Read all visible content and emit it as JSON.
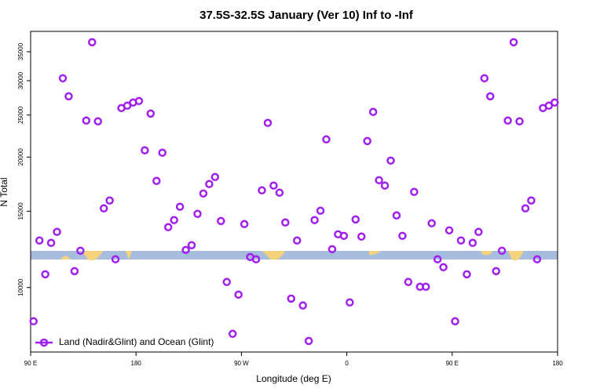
{
  "chart_data": {
    "type": "scatter",
    "title": "37.5S-32.5S January (Ver 10)   Inf to -Inf",
    "x_label": "Longitude (deg E)",
    "y_label": "N Total",
    "log_y": true,
    "legend": "bottom-left",
    "x": [
      92.5,
      97.5,
      102.5,
      107.5,
      112.5,
      117.5,
      122.5,
      127.5,
      132.5,
      137.5,
      142.5,
      147.5,
      152.5,
      157.5,
      162.5,
      167.5,
      172.5,
      177.5,
      182.5,
      187.5,
      192.5,
      197.5,
      202.5,
      207.5,
      212.5,
      217.5,
      222.5,
      227.5,
      232.5,
      237.5,
      242.5,
      247.5,
      252.5,
      257.5,
      262.5,
      267.5,
      272.5,
      277.5,
      282.5,
      287.5,
      292.5,
      297.5,
      302.5,
      307.5,
      312.5,
      317.5,
      322.5,
      327.5,
      332.5,
      337.5,
      342.5,
      347.5,
      352.5,
      357.5,
      362.5,
      367.5,
      372.5,
      377.5,
      382.5,
      387.5,
      392.5,
      397.5,
      402.5,
      407.5,
      412.5,
      417.5,
      422.5,
      427.5,
      432.5,
      437.5,
      442.5,
      447.5,
      452.5,
      457.5,
      462.5,
      467.5,
      472.5,
      477.5,
      482.5,
      487.5,
      492.5,
      497.5,
      502.5,
      507.5,
      512.5,
      517.5,
      522.5,
      527.5,
      532.5,
      537.5
    ],
    "series": [
      {
        "name": "Land (Nadir&Glint) and Ocean (Glint)",
        "color": "#a020f0",
        "values": [
          8360,
          12840,
          10730,
          12680,
          13440,
          30400,
          27620,
          10910,
          12160,
          24280,
          36810,
          24180,
          15230,
          15880,
          11620,
          25950,
          26280,
          26720,
          26940,
          20730,
          25200,
          17620,
          20470,
          13780,
          14310,
          15360,
          12210,
          12520,
          14790,
          16480,
          17330,
          17990,
          14240,
          10300,
          7820,
          9630,
          14010,
          11760,
          11620,
          16760,
          23980,
          17190,
          16550,
          14130,
          9430,
          12840,
          9090,
          7530,
          14310,
          15040,
          21970,
          12260,
          13270,
          13160,
          9240,
          14360,
          13110,
          21780,
          25420,
          17690,
          17190,
          19630,
          14670,
          13160,
          10300,
          16620,
          10040,
          10040,
          14070,
          11620,
          11140,
          13550,
          8360,
          12840,
          10730,
          12680,
          13440,
          30400,
          27620,
          10910,
          12160,
          24280,
          36810,
          24180,
          15230,
          15880,
          11620,
          25950,
          26280,
          26720
        ]
      }
    ],
    "xlim": [
      90,
      540
    ],
    "xticks": [
      {
        "value": 90,
        "label": "90 E"
      },
      180,
      {
        "value": 270,
        "label": "90 W"
      },
      {
        "value": 360,
        "label": "0"
      },
      {
        "value": 450,
        "label": "90 E"
      },
      {
        "value": 540,
        "label": "180"
      }
    ],
    "ylim": [
      7100,
      39000
    ],
    "yticks": [
      10000,
      15000,
      20000,
      25000,
      30000,
      35000
    ]
  }
}
